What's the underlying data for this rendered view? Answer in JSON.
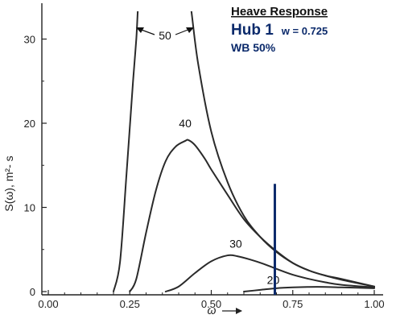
{
  "chart_data": {
    "type": "line",
    "xlabel": "ω",
    "ylabel": "S(ω), m²- s",
    "xlim": [
      0.0,
      1.0
    ],
    "ylim": [
      0,
      33
    ],
    "x_ticks": [
      {
        "value": 0.0,
        "label": "0.00"
      },
      {
        "value": 0.25,
        "label": "0.25"
      },
      {
        "value": 0.5,
        "label": "0.50"
      },
      {
        "value": 0.75,
        "label": "0.75"
      },
      {
        "value": 1.0,
        "label": "1.00"
      }
    ],
    "y_ticks": [
      {
        "value": 0,
        "label": "0"
      },
      {
        "value": 10,
        "label": "10"
      },
      {
        "value": 20,
        "label": "20"
      },
      {
        "value": 30,
        "label": "30"
      }
    ],
    "series": [
      {
        "name": "50",
        "x": [
          0.2,
          0.22,
          0.24,
          0.26,
          0.27,
          0.28,
          0.3,
          0.35,
          0.4,
          0.43,
          0.44,
          0.46,
          0.5,
          0.55,
          0.6,
          0.65,
          0.7,
          0.75,
          0.8,
          0.85,
          0.9,
          1.0
        ],
        "y": [
          0.0,
          3.5,
          14.0,
          25.0,
          30.0,
          36.0,
          36.0,
          36.0,
          36.0,
          36.0,
          33.0,
          27.0,
          19.0,
          13.0,
          9.0,
          6.5,
          4.7,
          3.4,
          2.5,
          1.9,
          1.5,
          0.6
        ],
        "clip_top": true
      },
      {
        "name": "40",
        "x": [
          0.25,
          0.27,
          0.3,
          0.33,
          0.36,
          0.39,
          0.42,
          0.43,
          0.45,
          0.48,
          0.5,
          0.55,
          0.6,
          0.65,
          0.7,
          0.75,
          0.8,
          0.85,
          0.9,
          1.0
        ],
        "y": [
          0.0,
          1.5,
          7.0,
          12.0,
          15.5,
          17.2,
          17.9,
          18.0,
          17.4,
          15.8,
          14.5,
          11.5,
          8.6,
          6.5,
          4.8,
          3.4,
          2.5,
          1.9,
          1.4,
          0.6
        ],
        "label_pos": {
          "x": 0.42,
          "y": 19.5
        }
      },
      {
        "name": "30",
        "x": [
          0.36,
          0.4,
          0.45,
          0.5,
          0.55,
          0.58,
          0.62,
          0.66,
          0.7,
          0.75,
          0.8,
          0.85,
          0.9,
          1.0
        ],
        "y": [
          0.0,
          0.6,
          2.2,
          3.6,
          4.3,
          4.2,
          3.8,
          3.3,
          2.7,
          2.0,
          1.5,
          1.1,
          0.8,
          0.5
        ],
        "label_pos": {
          "x": 0.575,
          "y": 5.2
        }
      },
      {
        "name": "20",
        "x": [
          0.6,
          0.65,
          0.7,
          0.75,
          0.8,
          0.85,
          0.9,
          0.95,
          1.0
        ],
        "y": [
          0.0,
          0.2,
          0.4,
          0.5,
          0.55,
          0.55,
          0.5,
          0.45,
          0.4
        ],
        "label_pos": {
          "x": 0.69,
          "y": 0.9
        }
      }
    ],
    "marker_line": {
      "x": 0.695,
      "y_from": 0,
      "y_to": 12.8,
      "color": "#0b2a6b"
    },
    "annotation_50": {
      "label": "50"
    },
    "legend_box": {
      "title": "Heave Response",
      "hub": "Hub 1",
      "w_text": "w = 0.725",
      "wb_text": "WB 50%",
      "title_color": "#111111",
      "hub_color": "#0b2a6b"
    },
    "grid": false,
    "line_color": "#2a2a2a"
  }
}
